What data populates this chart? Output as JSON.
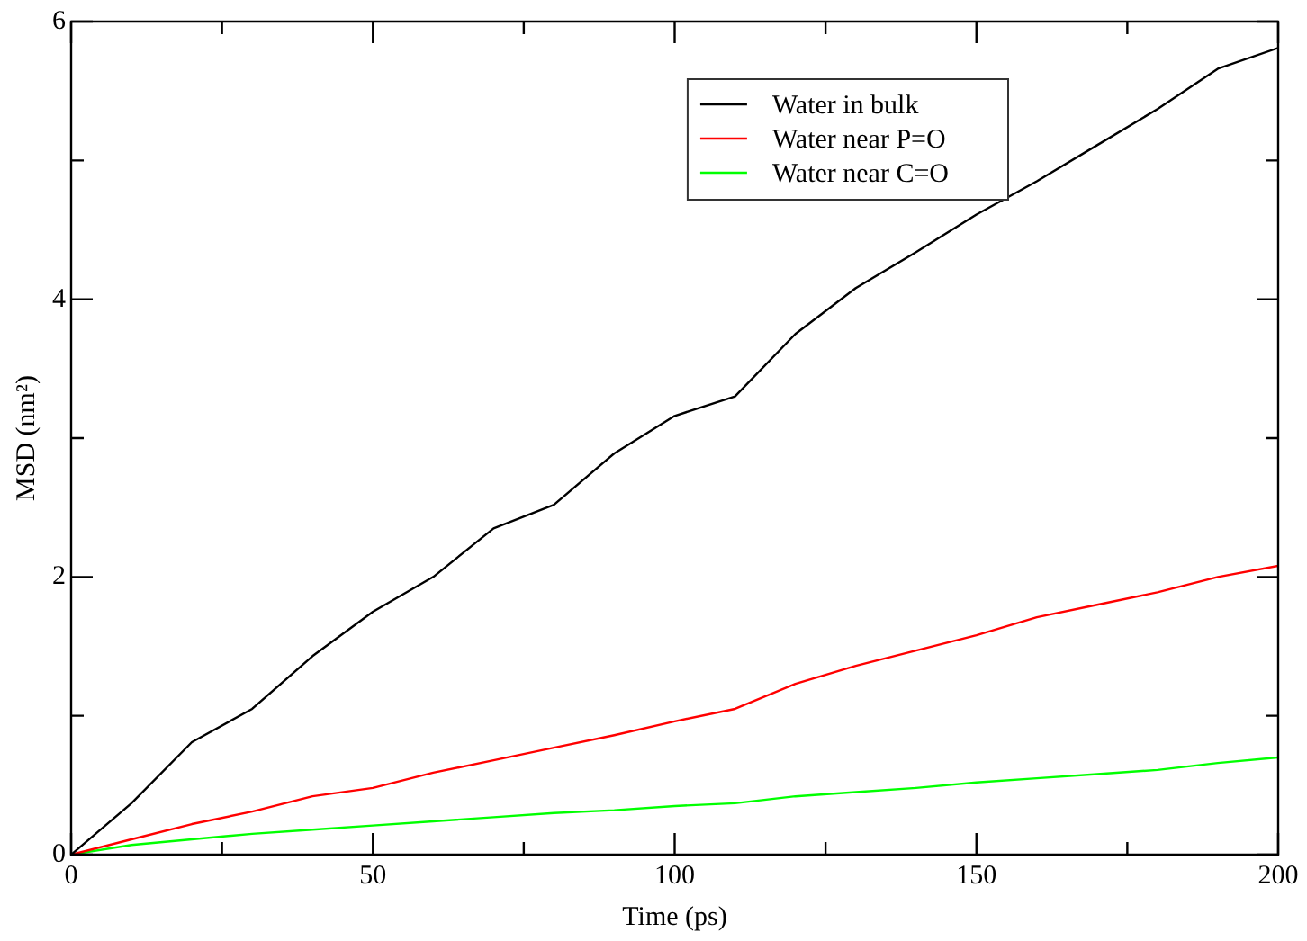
{
  "chart_data": {
    "type": "line",
    "xlabel": "Time (ps)",
    "ylabel": "MSD (nm²)",
    "x": [
      0,
      10,
      20,
      30,
      40,
      50,
      60,
      70,
      80,
      90,
      100,
      110,
      120,
      130,
      140,
      150,
      160,
      170,
      180,
      190,
      200
    ],
    "series": [
      {
        "name": "Water in bulk",
        "color": "#000000",
        "values": [
          0,
          0.37,
          0.81,
          1.05,
          1.43,
          1.75,
          2.0,
          2.35,
          2.52,
          2.89,
          3.16,
          3.3,
          3.75,
          4.08,
          4.34,
          4.61,
          4.85,
          5.11,
          5.37,
          5.66,
          5.81
        ]
      },
      {
        "name": "Water near P=O",
        "color": "#ff0000",
        "values": [
          0,
          0.11,
          0.22,
          0.31,
          0.42,
          0.48,
          0.59,
          0.68,
          0.77,
          0.86,
          0.96,
          1.05,
          1.23,
          1.36,
          1.47,
          1.58,
          1.71,
          1.8,
          1.89,
          2.0,
          2.08
        ]
      },
      {
        "name": "Water near C=O",
        "color": "#00ff00",
        "values": [
          0,
          0.07,
          0.11,
          0.15,
          0.18,
          0.21,
          0.24,
          0.27,
          0.3,
          0.32,
          0.35,
          0.37,
          0.42,
          0.45,
          0.48,
          0.52,
          0.55,
          0.58,
          0.61,
          0.66,
          0.7
        ]
      }
    ],
    "xlim": [
      0,
      200
    ],
    "ylim": [
      0,
      6
    ],
    "xticks": [
      0,
      {
        "value": 25,
        "label": null
      },
      50,
      {
        "value": 75,
        "label": null
      },
      100,
      {
        "value": 125,
        "label": null
      },
      150,
      {
        "value": 175,
        "label": null
      },
      200
    ],
    "yticks": [
      0,
      {
        "value": 1,
        "label": null
      },
      2,
      {
        "value": 3,
        "label": null
      },
      4,
      {
        "value": 5,
        "label": null
      },
      6
    ],
    "grid": false,
    "legend": "top right",
    "marker": "none",
    "line_style": "solid"
  }
}
